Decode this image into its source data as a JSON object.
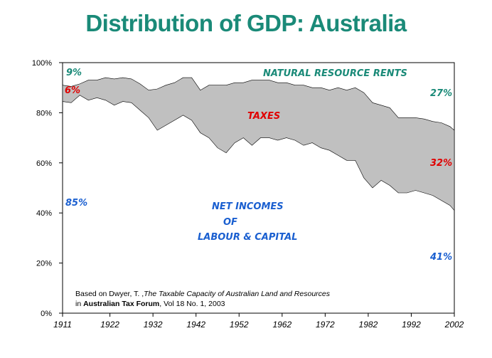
{
  "title": "Distribution of GDP: Australia",
  "colors": {
    "title": "#1a8a78",
    "teal": "#1a8a78",
    "red": "#e00000",
    "blue": "#1a5fd0",
    "band": "#c0c0c0"
  },
  "chart_data": {
    "type": "area",
    "x": [
      1911,
      1913,
      1915,
      1917,
      1919,
      1921,
      1923,
      1925,
      1927,
      1929,
      1931,
      1933,
      1935,
      1937,
      1939,
      1941,
      1943,
      1945,
      1947,
      1949,
      1951,
      1953,
      1955,
      1957,
      1959,
      1961,
      1963,
      1965,
      1967,
      1969,
      1971,
      1973,
      1975,
      1977,
      1979,
      1981,
      1983,
      1985,
      1987,
      1989,
      1991,
      1993,
      1995,
      1997,
      1999,
      2001,
      2002
    ],
    "series": [
      {
        "values": [
          84.5,
          84,
          87,
          85,
          86,
          85,
          83,
          84.5,
          84,
          81,
          78,
          73,
          75,
          77,
          79,
          77,
          72,
          70,
          66,
          64,
          68,
          70,
          67,
          70,
          70,
          69,
          70,
          69,
          67,
          68,
          66,
          65,
          63,
          61,
          61,
          54,
          50,
          53,
          51,
          48,
          48,
          49,
          48,
          47,
          45,
          43,
          41
        ]
      },
      {
        "values": [
          91,
          90.5,
          91.5,
          93,
          93,
          94,
          93.5,
          94,
          93.5,
          91.5,
          89,
          89.5,
          91,
          92,
          94,
          94,
          89,
          91,
          91,
          91,
          92,
          92,
          93,
          93,
          93,
          92,
          92,
          91,
          91,
          90,
          90,
          89,
          90,
          89,
          90,
          88,
          84,
          83,
          82,
          78,
          78,
          78,
          77.5,
          76.5,
          76,
          74.5,
          73
        ]
      }
    ],
    "ylim": [
      0,
      100
    ],
    "xlim": [
      1911,
      2002
    ],
    "yticks": [
      "0%",
      "20%",
      "40%",
      "60%",
      "80%",
      "100%"
    ],
    "xticks": [
      "1911",
      "1922",
      "1932",
      "1942",
      "1952",
      "1962",
      "1972",
      "1982",
      "1992",
      "2002"
    ],
    "annotations": {
      "natural_resource_rents": "NATURAL RESOURCE RENTS",
      "taxes": "TAXES",
      "net_incomes_1": "NET INCOMES",
      "net_incomes_2": "OF",
      "net_incomes_3": "LABOUR & CAPITAL",
      "start_rents": "9%",
      "start_taxes": "6%",
      "start_net": "85%",
      "end_rents": "27%",
      "end_taxes": "32%",
      "end_net": "41%"
    },
    "source": {
      "line1_prefix": "Based on Dwyer, T. ,",
      "line1_italic": "The Taxable Capacity of Australian Land and Resources",
      "line2_prefix": "in ",
      "line2_bold": "Australian Tax Forum",
      "line2_suffix": ", Vol 18 No. 1, 2003"
    }
  }
}
